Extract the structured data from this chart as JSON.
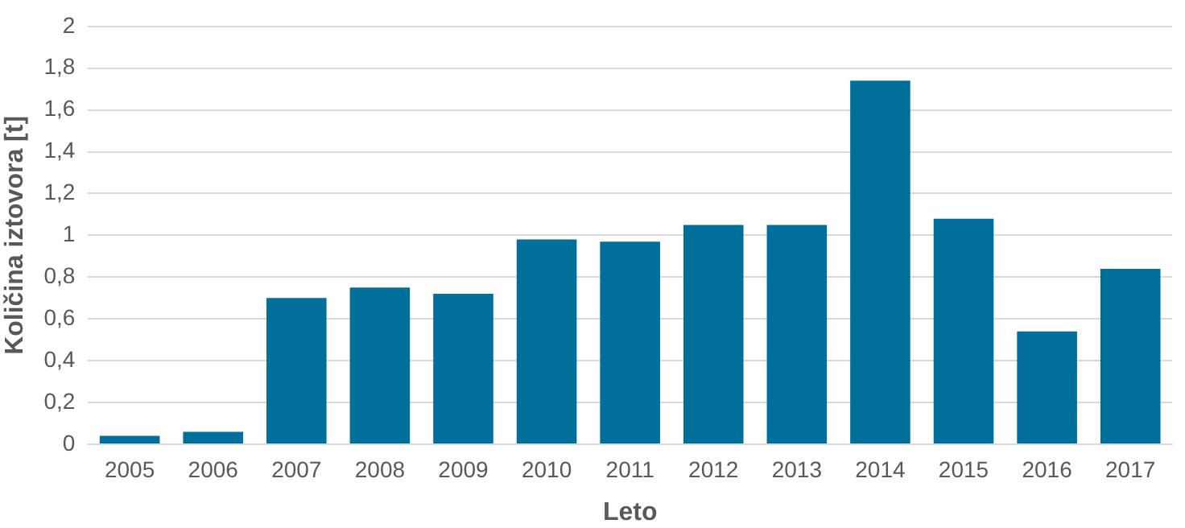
{
  "chart_data": {
    "type": "bar",
    "xlabel": "Leto",
    "ylabel": "Količina iztovora [t]",
    "categories": [
      "2005",
      "2006",
      "2007",
      "2008",
      "2009",
      "2010",
      "2011",
      "2012",
      "2013",
      "2014",
      "2015",
      "2016",
      "2017"
    ],
    "values": [
      0.04,
      0.06,
      0.7,
      0.75,
      0.72,
      0.98,
      0.97,
      1.05,
      1.05,
      1.74,
      1.08,
      0.54,
      0.84
    ],
    "color": "#006f9a",
    "ylim": [
      0,
      2
    ],
    "yticks": [
      0,
      {
        "value": 0.2,
        "label": "0,2"
      },
      {
        "value": 0.4,
        "label": "0,4"
      },
      {
        "value": 0.6,
        "label": "0,6"
      },
      {
        "value": 0.8,
        "label": "0,8"
      },
      1,
      {
        "value": 1.2,
        "label": "1,2"
      },
      {
        "value": 1.4,
        "label": "1,4"
      },
      {
        "value": 1.6,
        "label": "1,6"
      },
      {
        "value": 1.8,
        "label": "1,8"
      },
      2
    ],
    "grid": "y"
  }
}
